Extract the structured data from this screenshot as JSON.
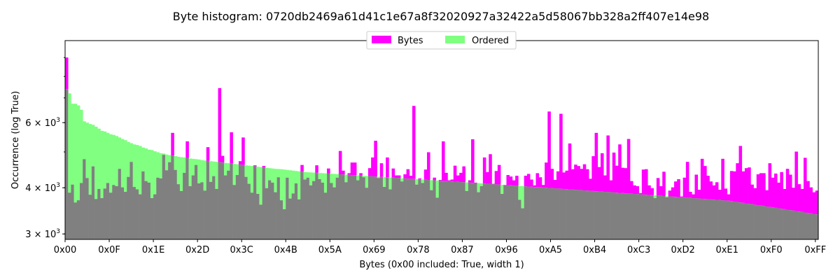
{
  "chart_data": {
    "type": "bar",
    "title": "Byte histogram: 0720db2469a61d41c1e67a8f32020927a32422a5d58067bb328a2ff407e14e98",
    "xlabel": "Bytes (0x00 included: True, width 1)",
    "ylabel": "Occurrence (log True)",
    "y_scale": "log",
    "ylim": [
      2900,
      10000
    ],
    "xlim": [
      0,
      256
    ],
    "grid": false,
    "legend_position": "top-center",
    "x_tick_labels": [
      "0x00",
      "0x0F",
      "0x1E",
      "0x2D",
      "0x3C",
      "0x4B",
      "0x5A",
      "0x69",
      "0x78",
      "0x87",
      "0x96",
      "0xA5",
      "0xB4",
      "0xC3",
      "0xD2",
      "0xE1",
      "0xF0",
      "0xFF"
    ],
    "y_tick_labels": [
      {
        "value": 3000,
        "mantissa": "3",
        "exp": "3"
      },
      {
        "value": 4000,
        "mantissa": "4",
        "exp": "3"
      },
      {
        "value": 6000,
        "mantissa": "6",
        "exp": "3"
      }
    ],
    "overlap_color": "#808080",
    "series": [
      {
        "name": "Bytes",
        "color": "#ff00ff",
        "values": [
          9000,
          3880,
          4080,
          3650,
          3700,
          4120,
          4780,
          4250,
          3830,
          4570,
          3730,
          3970,
          3750,
          3980,
          4120,
          3880,
          4070,
          4040,
          4500,
          4010,
          3900,
          4280,
          4700,
          4020,
          3960,
          3840,
          4430,
          4170,
          4130,
          3750,
          3840,
          4260,
          4240,
          4910,
          4460,
          4690,
          5630,
          4470,
          4090,
          3920,
          4390,
          5340,
          4040,
          4320,
          4610,
          4110,
          4140,
          3930,
          5150,
          4150,
          4300,
          3970,
          7440,
          4880,
          4320,
          4450,
          5650,
          4070,
          4330,
          4720,
          5470,
          4280,
          4100,
          3880,
          4600,
          3850,
          3600,
          4580,
          3990,
          4190,
          4130,
          3890,
          4270,
          3700,
          3500,
          4260,
          3740,
          3860,
          4110,
          3720,
          4610,
          4210,
          4260,
          4060,
          4170,
          4600,
          4220,
          4130,
          3880,
          4510,
          4120,
          4010,
          4260,
          5030,
          4450,
          4140,
          4380,
          4680,
          4680,
          4190,
          4380,
          4270,
          4000,
          4520,
          4830,
          5360,
          4250,
          4660,
          4020,
          4830,
          3960,
          4510,
          4320,
          4320,
          4160,
          4350,
          4490,
          4310,
          6660,
          4080,
          4240,
          4120,
          4480,
          4990,
          3940,
          4260,
          3760,
          4200,
          5340,
          4390,
          4190,
          4210,
          4590,
          4320,
          4390,
          4570,
          3920,
          4190,
          5410,
          4130,
          3890,
          4040,
          4830,
          4410,
          4930,
          4100,
          4440,
          4610,
          3850,
          4070,
          4330,
          4290,
          4190,
          4310,
          3710,
          3520,
          4310,
          4360,
          4210,
          4060,
          4380,
          4270,
          4070,
          4680,
          6430,
          4500,
          4200,
          4430,
          6340,
          4400,
          4450,
          5270,
          4490,
          4620,
          4580,
          4500,
          4630,
          4490,
          4230,
          4870,
          5630,
          4550,
          4960,
          4320,
          5540,
          4190,
          4980,
          4590,
          5240,
          4530,
          4520,
          5420,
          4170,
          4060,
          4040,
          3870,
          4480,
          4490,
          4060,
          3990,
          3750,
          4250,
          4040,
          4420,
          3770,
          3930,
          4010,
          4160,
          4220,
          3790,
          4260,
          4700,
          3900,
          3840,
          4340,
          3950,
          4790,
          4580,
          4310,
          4160,
          4060,
          4140,
          3950,
          4790,
          3980,
          3840,
          4440,
          4430,
          4660,
          5190,
          4430,
          4520,
          4540,
          4080,
          3990,
          4350,
          4380,
          4380,
          3940,
          4660,
          4260,
          4370,
          4130,
          4410,
          3970,
          4500,
          4340,
          4000,
          5010,
          4090,
          3970,
          4820,
          4170,
          4010,
          3890,
          3930
        ]
      },
      {
        "name": "Ordered",
        "color": "#80ff80",
        "values": [
          7400,
          7200,
          6750,
          6750,
          6680,
          6500,
          6050,
          6000,
          5950,
          5920,
          5850,
          5780,
          5700,
          5680,
          5630,
          5580,
          5560,
          5520,
          5470,
          5420,
          5380,
          5320,
          5280,
          5240,
          5220,
          5190,
          5140,
          5110,
          5070,
          5060,
          5020,
          4990,
          4960,
          4950,
          4920,
          4900,
          4890,
          4870,
          4850,
          4840,
          4830,
          4820,
          4800,
          4790,
          4780,
          4770,
          4750,
          4740,
          4730,
          4720,
          4710,
          4700,
          4690,
          4680,
          4670,
          4660,
          4650,
          4640,
          4630,
          4620,
          4610,
          4600,
          4590,
          4580,
          4570,
          4560,
          4550,
          4540,
          4530,
          4520,
          4510,
          4500,
          4495,
          4490,
          4480,
          4470,
          4460,
          4450,
          4440,
          4430,
          4420,
          4410,
          4405,
          4400,
          4395,
          4390,
          4385,
          4380,
          4375,
          4370,
          4365,
          4360,
          4355,
          4350,
          4345,
          4340,
          4335,
          4330,
          4325,
          4320,
          4315,
          4310,
          4305,
          4300,
          4295,
          4290,
          4285,
          4280,
          4275,
          4270,
          4265,
          4260,
          4255,
          4250,
          4245,
          4240,
          4235,
          4230,
          4225,
          4220,
          4215,
          4210,
          4205,
          4200,
          4195,
          4190,
          4185,
          4180,
          4175,
          4170,
          4165,
          4160,
          4155,
          4150,
          4145,
          4140,
          4135,
          4130,
          4125,
          4120,
          4115,
          4110,
          4105,
          4100,
          4095,
          4090,
          4085,
          4080,
          4075,
          4070,
          4065,
          4060,
          4055,
          4050,
          4045,
          4040,
          4035,
          4030,
          4025,
          4020,
          4015,
          4010,
          4005,
          4000,
          3995,
          3990,
          3985,
          3980,
          3975,
          3970,
          3965,
          3960,
          3955,
          3950,
          3945,
          3940,
          3935,
          3930,
          3925,
          3920,
          3915,
          3910,
          3905,
          3900,
          3895,
          3890,
          3885,
          3880,
          3875,
          3870,
          3865,
          3860,
          3855,
          3850,
          3845,
          3840,
          3835,
          3830,
          3825,
          3820,
          3815,
          3810,
          3805,
          3800,
          3795,
          3790,
          3785,
          3780,
          3775,
          3770,
          3765,
          3760,
          3755,
          3750,
          3745,
          3740,
          3735,
          3730,
          3725,
          3720,
          3715,
          3710,
          3705,
          3700,
          3695,
          3690,
          3680,
          3670,
          3660,
          3650,
          3640,
          3630,
          3620,
          3610,
          3600,
          3590,
          3580,
          3570,
          3560,
          3550,
          3540,
          3530,
          3520,
          3510,
          3500,
          3490,
          3480,
          3470,
          3460,
          3450,
          3440,
          3430,
          3420,
          3410,
          3400,
          3390
        ]
      }
    ]
  }
}
